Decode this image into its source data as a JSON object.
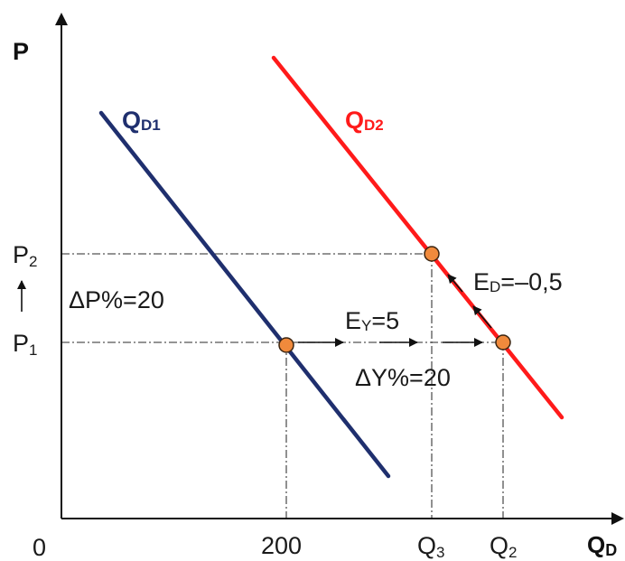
{
  "axes": {
    "y_label": "P",
    "x_label": "Q",
    "x_label_sub": "D",
    "origin_label": "0"
  },
  "curves": [
    {
      "name": "Q",
      "sub": "D1",
      "color": "#1f2f6e"
    },
    {
      "name": "Q",
      "sub": "D2",
      "color": "#ff1a1a"
    }
  ],
  "y_ticks": [
    {
      "main": "P",
      "sub": "2"
    },
    {
      "main": "P",
      "sub": "1"
    }
  ],
  "x_ticks": [
    {
      "main": "200",
      "sub": ""
    },
    {
      "main": "Q",
      "sub": "3"
    },
    {
      "main": "Q",
      "sub": "2"
    }
  ],
  "annotations": {
    "delta_p": "ΔP%=20",
    "income_elasticity": {
      "main": "E",
      "sub": "Y",
      "rest": "=5"
    },
    "delta_y": "ΔY%=20",
    "price_elasticity": {
      "main": "E",
      "sub": "D",
      "rest": "=–0,5"
    }
  },
  "point_color": "#f08a3c"
}
